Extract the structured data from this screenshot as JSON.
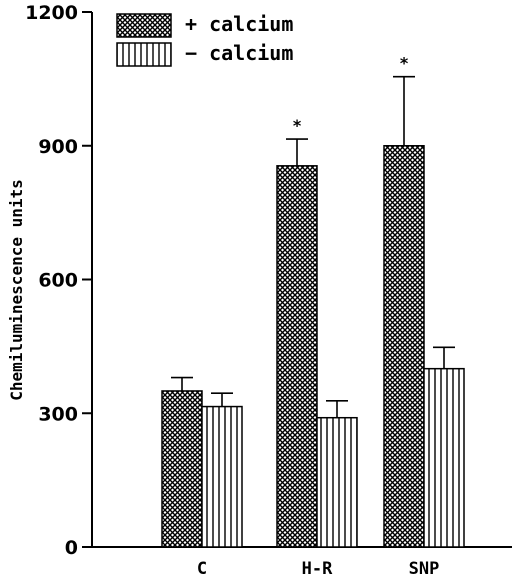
{
  "chart_data": {
    "type": "bar",
    "title": "",
    "xlabel": "",
    "ylabel": "Chemiluminescence units",
    "ylim": [
      0,
      1200
    ],
    "yticks": [
      0,
      300,
      600,
      900,
      1200
    ],
    "categories": [
      "C",
      "H-R",
      "SNP"
    ],
    "series": [
      {
        "name": "+ calcium",
        "pattern": "crosshatch",
        "values": [
          350,
          855,
          900
        ],
        "errors": [
          30,
          60,
          155
        ],
        "significance": [
          "",
          "*",
          "*"
        ]
      },
      {
        "name": "− calcium",
        "pattern": "vertical-lines",
        "values": [
          315,
          290,
          400
        ],
        "errors": [
          30,
          38,
          48
        ],
        "significance": [
          "",
          "",
          ""
        ]
      }
    ],
    "grid": false,
    "legend_position": "top-left"
  }
}
